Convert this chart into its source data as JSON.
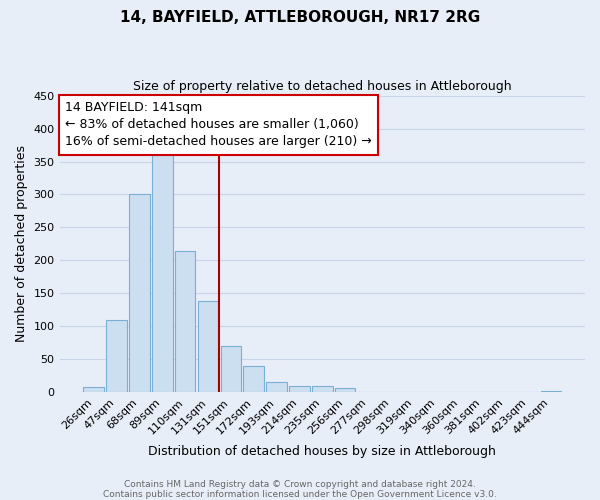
{
  "title": "14, BAYFIELD, ATTLEBOROUGH, NR17 2RG",
  "subtitle": "Size of property relative to detached houses in Attleborough",
  "xlabel": "Distribution of detached houses by size in Attleborough",
  "ylabel": "Number of detached properties",
  "footnote1": "Contains HM Land Registry data © Crown copyright and database right 2024.",
  "footnote2": "Contains public sector information licensed under the Open Government Licence v3.0.",
  "bar_labels": [
    "26sqm",
    "47sqm",
    "68sqm",
    "89sqm",
    "110sqm",
    "131sqm",
    "151sqm",
    "172sqm",
    "193sqm",
    "214sqm",
    "235sqm",
    "256sqm",
    "277sqm",
    "298sqm",
    "319sqm",
    "340sqm",
    "360sqm",
    "381sqm",
    "402sqm",
    "423sqm",
    "444sqm"
  ],
  "bar_values": [
    8,
    110,
    300,
    360,
    215,
    138,
    70,
    40,
    15,
    10,
    10,
    6,
    0,
    0,
    0,
    0,
    0,
    0,
    0,
    0,
    2
  ],
  "bar_color": "#ccdff0",
  "bar_edge_color": "#7aafd4",
  "ylim": [
    0,
    450
  ],
  "yticks": [
    0,
    50,
    100,
    150,
    200,
    250,
    300,
    350,
    400,
    450
  ],
  "vline_color": "#aa0000",
  "annotation_title": "14 BAYFIELD: 141sqm",
  "annotation_line1": "← 83% of detached houses are smaller (1,060)",
  "annotation_line2": "16% of semi-detached houses are larger (210) →",
  "annotation_box_edge_color": "#cc0000",
  "bg_color": "#e8eef8",
  "plot_bg_color": "#e8eef8",
  "grid_color": "#c8d4e8",
  "title_fontsize": 11,
  "subtitle_fontsize": 9,
  "annotation_fontsize": 9,
  "ylabel_fontsize": 9,
  "xlabel_fontsize": 9,
  "tick_fontsize": 8,
  "footnote_fontsize": 6.5,
  "footnote_color": "#666666"
}
